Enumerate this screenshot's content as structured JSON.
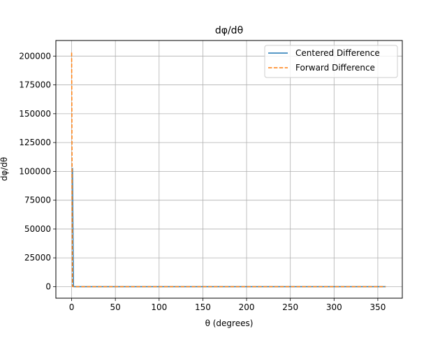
{
  "chart_data": {
    "type": "line",
    "title": "dφ/dθ",
    "xlabel": "θ (degrees)",
    "ylabel": "dφ/dθ",
    "xlim": [
      -18,
      378
    ],
    "ylim": [
      -10000,
      213500
    ],
    "xticks": [
      0,
      50,
      100,
      150,
      200,
      250,
      300,
      350
    ],
    "yticks": [
      0,
      25000,
      50000,
      75000,
      100000,
      125000,
      150000,
      175000,
      200000
    ],
    "grid": true,
    "legend_position": "top-right",
    "series": [
      {
        "name": "Centered Difference",
        "color": "#1f77b4",
        "dash": "solid",
        "x": [
          1,
          2,
          3,
          90,
          180,
          270,
          359
        ],
        "y": [
          103000,
          100,
          30,
          0,
          0,
          0,
          0
        ]
      },
      {
        "name": "Forward Difference",
        "color": "#ff7f0e",
        "dash": "dashed",
        "x": [
          0,
          1,
          2,
          90,
          180,
          270,
          359
        ],
        "y": [
          203000,
          100,
          30,
          0,
          0,
          0,
          0
        ]
      }
    ]
  }
}
